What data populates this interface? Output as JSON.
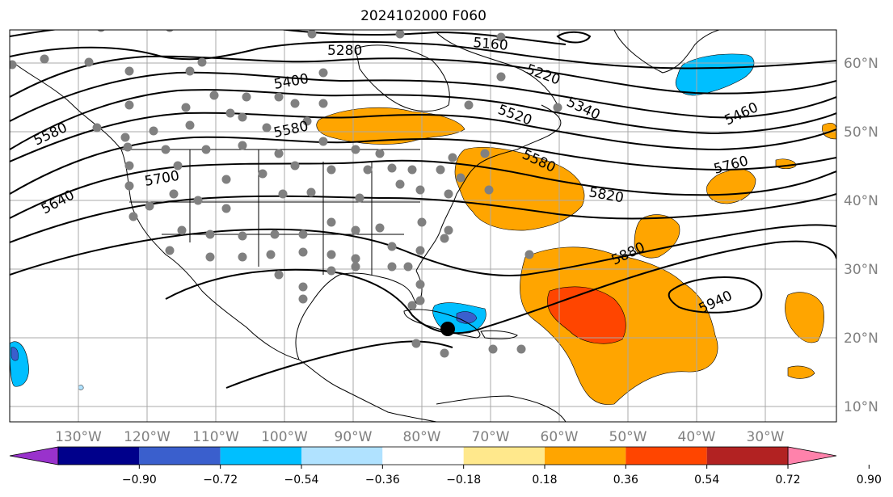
{
  "title": "2024102000 F060",
  "lon_labels": [
    "130°W",
    "120°W",
    "110°W",
    "100°W",
    "90°W",
    "80°W",
    "70°W",
    "60°W",
    "50°W",
    "40°W",
    "30°W"
  ],
  "lat_labels": [
    "60°N",
    "50°N",
    "40°N",
    "30°N",
    "20°N",
    "10°N"
  ],
  "contour_labels": [
    "5160",
    "5220",
    "5280",
    "5340",
    "5400",
    "5460",
    "5520",
    "5580",
    "5580",
    "5580",
    "5640",
    "5700",
    "5760",
    "5820",
    "5880",
    "5940"
  ],
  "colorbar": {
    "ticks": [
      "−0.90",
      "−0.72",
      "−0.54",
      "−0.36",
      "−0.18",
      "0.18",
      "0.36",
      "0.54",
      "0.72",
      "0.90"
    ],
    "colors": [
      "#9932CC",
      "#00008B",
      "#3A5FCD",
      "#00BFFF",
      "#B0E2FF",
      "#FFFFFF",
      "#FFE88C",
      "#FFA500",
      "#FF4500",
      "#B22222",
      "#FF82AB"
    ]
  },
  "colors": {
    "grid": "#a9a9a9",
    "tick_text": "#808080",
    "station_dot": "#808080",
    "marker": "#000000"
  }
}
